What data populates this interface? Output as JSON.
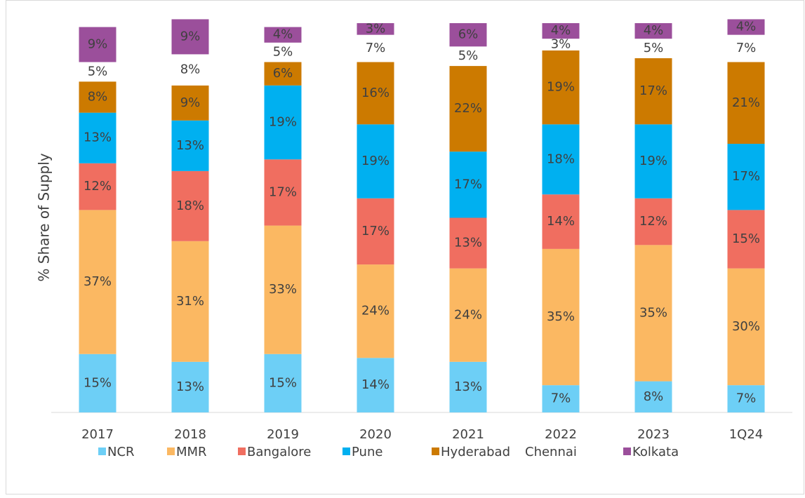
{
  "chart_data": {
    "type": "stacked_bar",
    "y_label": "% Share of Supply",
    "categories": [
      "2017",
      "2018",
      "2019",
      "2020",
      "2021",
      "2022",
      "2023",
      "1Q24"
    ],
    "ylim": [
      0,
      100
    ],
    "series": [
      {
        "name": "NCR",
        "color": "#6dcff6",
        "values": [
          15,
          13,
          15,
          14,
          13,
          7,
          8,
          7
        ],
        "value_labels": [
          "15%",
          "13%",
          "15%",
          "14%",
          "13%",
          "7%",
          "8%",
          "7%"
        ]
      },
      {
        "name": "MMR",
        "color": "#fbb862",
        "values": [
          37,
          31,
          33,
          24,
          24,
          35,
          35,
          30
        ],
        "value_labels": [
          "37%",
          "31%",
          "33%",
          "24%",
          "24%",
          "35%",
          "35%",
          "30%"
        ]
      },
      {
        "name": "Bangalore",
        "color": "#f06e60",
        "values": [
          12,
          18,
          17,
          17,
          13,
          14,
          12,
          15
        ],
        "value_labels": [
          "12%",
          "18%",
          "17%",
          "17%",
          "13%",
          "14%",
          "12%",
          "15%"
        ]
      },
      {
        "name": "Pune",
        "color": "#00b0f0",
        "values": [
          13,
          13,
          19,
          19,
          17,
          18,
          19,
          17
        ],
        "value_labels": [
          "13%",
          "13%",
          "19%",
          "19%",
          "17%",
          "18%",
          "19%",
          "17%"
        ]
      },
      {
        "name": "Hyderabad",
        "color": "#cc7a00",
        "values": [
          8,
          9,
          6,
          16,
          22,
          19,
          17,
          21
        ],
        "value_labels": [
          "8%",
          "9%",
          "6%",
          "16%",
          "22%",
          "19%",
          "17%",
          "21%"
        ]
      },
      {
        "name": "Chennai",
        "color": "#ffffff",
        "values": [
          5,
          8,
          5,
          7,
          5,
          3,
          5,
          7
        ],
        "value_labels": [
          "5%",
          "8%",
          "5%",
          "7%",
          "5%",
          "3%",
          "5%",
          "7%"
        ]
      },
      {
        "name": "Kolkata",
        "color": "#9b4f9b",
        "values": [
          9,
          9,
          4,
          3,
          6,
          4,
          4,
          4
        ],
        "value_labels": [
          "9%",
          "9%",
          "4%",
          "3%",
          "6%",
          "4%",
          "4%",
          "4%"
        ]
      }
    ],
    "legend": "bottom"
  }
}
